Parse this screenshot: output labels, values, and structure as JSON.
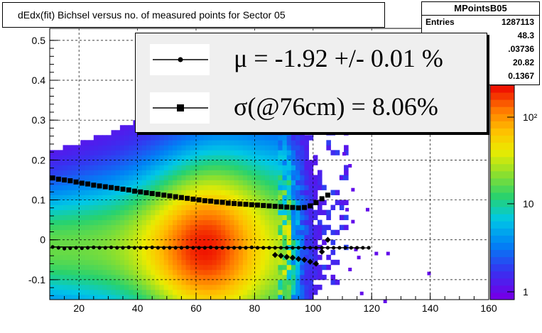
{
  "title": "dEdx(fit) Bichsel versus no. of measured points for Sector 05",
  "stats": {
    "name": "MPointsB05",
    "rows": [
      {
        "label": "Entries",
        "value": "1287113"
      },
      {
        "label": "",
        "value": "48.3"
      },
      {
        "label": "",
        "value": ".03736"
      },
      {
        "label": "",
        "value": "20.82"
      },
      {
        "label": "",
        "value": "0.1367"
      }
    ]
  },
  "legend": {
    "mu_text": "μ  = -1.92 +/-  0.01 %",
    "sigma_text": "σ(@76cm) =  8.06%"
  },
  "chart_data": {
    "type": "heatmap",
    "xlim": [
      10,
      160
    ],
    "ylim": [
      -0.15,
      0.53
    ],
    "x_ticks": [
      20,
      40,
      60,
      80,
      100,
      120,
      140,
      160
    ],
    "y_ticks": [
      -0.1,
      0,
      0.1,
      0.2,
      0.3,
      0.4,
      0.5
    ],
    "y_tick_labels": [
      "-0.1",
      "0",
      "0.1",
      "0.2",
      "0.3",
      "0.4",
      "0.5"
    ],
    "colorbar_ticks": [
      "1",
      "10",
      "10²"
    ],
    "colorbar_scale": "log",
    "grid": true,
    "density_peak": {
      "x": 63,
      "y": -0.02
    },
    "series": [
      {
        "marker": "circle",
        "x": [
          11,
          13,
          15,
          17,
          19,
          21,
          23,
          25,
          27,
          29,
          31,
          33,
          35,
          37,
          39,
          41,
          43,
          45,
          47,
          49,
          51,
          53,
          55,
          57,
          59,
          61,
          63,
          65,
          67,
          69,
          71,
          73,
          75,
          77,
          79,
          81,
          83,
          85,
          87,
          89,
          91,
          93,
          95,
          97,
          99,
          101,
          103,
          105,
          107,
          109,
          111,
          113,
          115,
          117,
          119
        ],
        "y": [
          -0.018,
          -0.02,
          -0.022,
          -0.021,
          -0.02,
          -0.021,
          -0.02,
          -0.019,
          -0.02,
          -0.02,
          -0.019,
          -0.02,
          -0.02,
          -0.019,
          -0.02,
          -0.02,
          -0.02,
          -0.019,
          -0.02,
          -0.02,
          -0.02,
          -0.02,
          -0.02,
          -0.019,
          -0.02,
          -0.02,
          -0.02,
          -0.019,
          -0.02,
          -0.02,
          -0.02,
          -0.02,
          -0.02,
          -0.02,
          -0.019,
          -0.02,
          -0.02,
          -0.02,
          -0.02,
          -0.02,
          -0.02,
          -0.02,
          -0.02,
          -0.02,
          -0.02,
          -0.02,
          -0.02,
          -0.02,
          -0.02,
          -0.02,
          -0.02,
          -0.02,
          -0.02,
          -0.02,
          -0.02
        ]
      },
      {
        "marker": "square",
        "x": [
          11,
          13,
          15,
          17,
          19,
          21,
          23,
          25,
          27,
          29,
          31,
          33,
          35,
          37,
          39,
          41,
          43,
          45,
          47,
          49,
          51,
          53,
          55,
          57,
          59,
          61,
          63,
          65,
          67,
          69,
          71,
          73,
          75,
          77,
          79,
          81,
          83,
          85,
          87,
          89,
          91,
          93,
          95,
          97,
          99,
          101,
          103,
          105
        ],
        "y": [
          0.155,
          0.152,
          0.15,
          0.148,
          0.145,
          0.142,
          0.14,
          0.137,
          0.135,
          0.133,
          0.131,
          0.129,
          0.127,
          0.125,
          0.122,
          0.12,
          0.118,
          0.116,
          0.114,
          0.112,
          0.11,
          0.108,
          0.106,
          0.104,
          0.102,
          0.1,
          0.098,
          0.097,
          0.095,
          0.094,
          0.092,
          0.091,
          0.09,
          0.089,
          0.088,
          0.087,
          0.086,
          0.085,
          0.084,
          0.083,
          0.082,
          0.081,
          0.08,
          0.081,
          0.085,
          0.093,
          0.103,
          0.112
        ]
      },
      {
        "marker": "diamond",
        "x": [
          87,
          89,
          91,
          93,
          95,
          97,
          99,
          101,
          103,
          105
        ],
        "y": [
          -0.038,
          -0.04,
          -0.043,
          -0.045,
          -0.048,
          -0.05,
          -0.055,
          -0.06,
          -0.03,
          0.0
        ]
      }
    ]
  }
}
